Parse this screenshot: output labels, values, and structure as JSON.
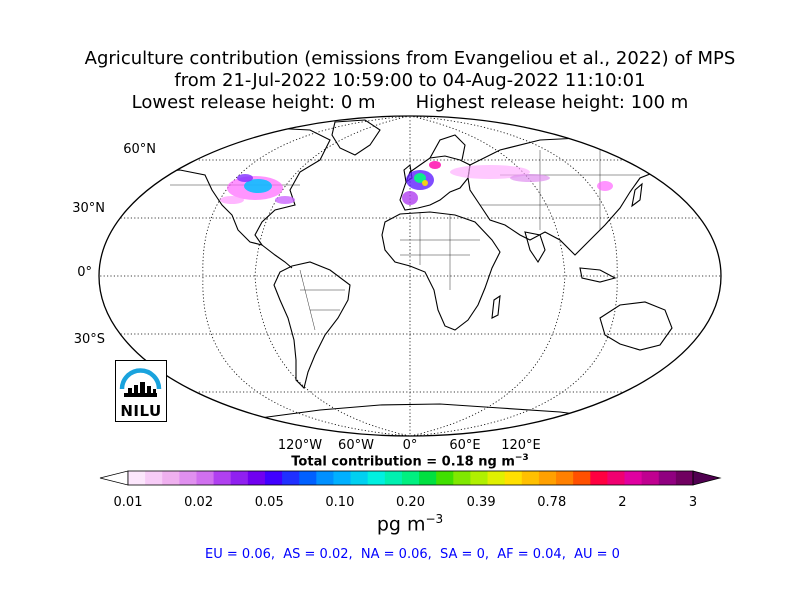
{
  "title": {
    "line1": "Agriculture contribution (emissions from Evangeliou et al., 2022) of MPS",
    "line2": "from 21-Jul-2022 10:59:00 to 04-Aug-2022 11:10:01",
    "line3": "Lowest release height: 0 m       Highest release height: 100 m"
  },
  "map": {
    "projection": "robinson",
    "gridlines": "dotted",
    "lat_labels": [
      "60°N",
      "30°N",
      "0°",
      "30°S"
    ],
    "lon_labels": [
      "120°W",
      "60°W",
      "0°",
      "60°E",
      "120°E"
    ],
    "ocean_color": "#ffffff",
    "land_color": "#ffffff"
  },
  "logo": {
    "text": "NILU",
    "accent": "#1aa3dd"
  },
  "total": {
    "prefix": "Total contribution = 0.18 ng m",
    "exponent": "−3"
  },
  "colorbar": {
    "tick_labels": [
      "0.01",
      "0.02",
      "0.05",
      "0.10",
      "0.20",
      "0.39",
      "0.78",
      "2",
      "3"
    ],
    "colors": [
      "#fce6fc",
      "#f7ccf7",
      "#efb0ef",
      "#e090ef",
      "#d070ef",
      "#b040f0",
      "#9020f0",
      "#7000f0",
      "#4000ff",
      "#2030ff",
      "#0060ff",
      "#0090ff",
      "#00b0ff",
      "#00d0f0",
      "#00f0e0",
      "#00f0b0",
      "#00f080",
      "#00e040",
      "#40e000",
      "#80e800",
      "#b0f000",
      "#e0f000",
      "#ffe000",
      "#ffc000",
      "#ffa000",
      "#ff8000",
      "#ff5000",
      "#ff0040",
      "#f00070",
      "#e000a0",
      "#c00090",
      "#900080",
      "#700060"
    ],
    "units_base": "pg m",
    "units_exp": "−3"
  },
  "regions": "EU = 0.06,  AS = 0.02,  NA = 0.06,  SA = 0,  AF = 0.04,  AU = 0",
  "regions_color": "#0000ff"
}
